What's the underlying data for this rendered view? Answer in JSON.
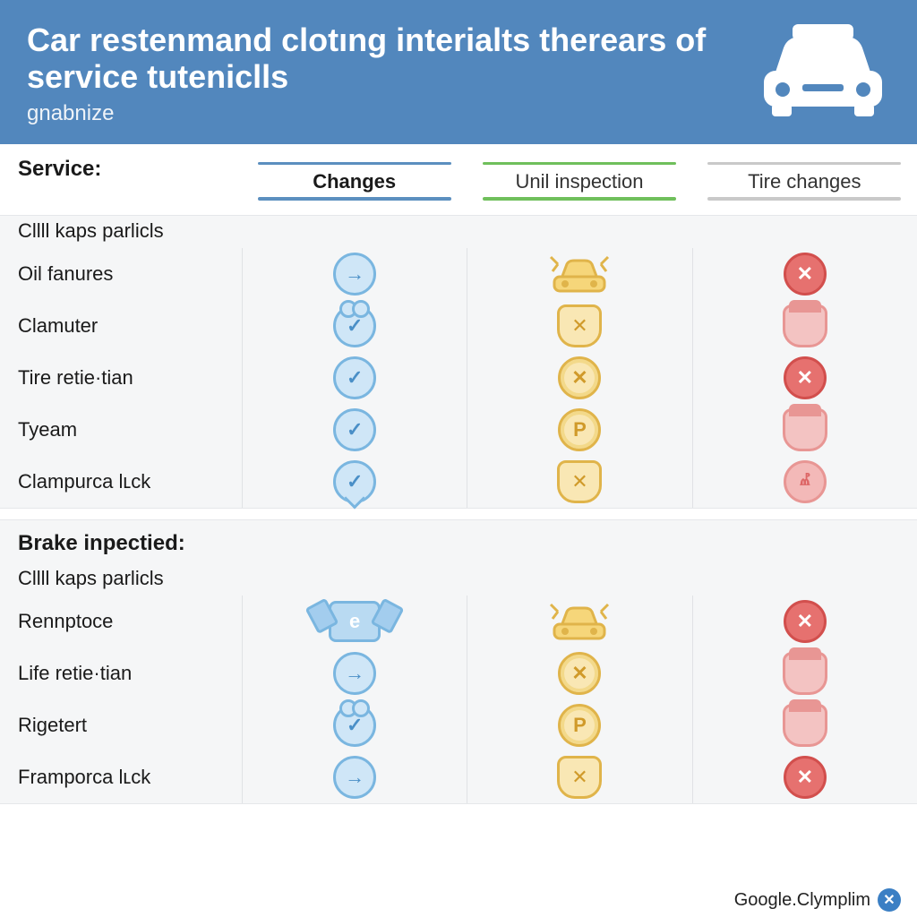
{
  "header": {
    "title": "Car restenmand clotıng interialts therears of service tuteniclls",
    "subtitle": "gnabnize",
    "bg_color": "#5287bd",
    "text_color": "#ffffff"
  },
  "columns": {
    "service_label": "Service:",
    "col1": {
      "label": "Changes",
      "topline_color": "#5b8fbf",
      "underline_color": "#5b8fbf",
      "header_weight": 700
    },
    "col2": {
      "label": "Unil inspection",
      "topline_color": "#6fbf5b",
      "underline_color": "#6fbf5b",
      "header_weight": 400
    },
    "col3": {
      "label": "Tire changes",
      "topline_color": "#c9c9c9",
      "underline_color": "#c9c9c9",
      "header_weight": 400
    }
  },
  "palette": {
    "blue_fill": "#cfe6f7",
    "blue_stroke": "#7ab6e0",
    "blue_glyph": "#4a8fc7",
    "gold_fill": "#f9e7b4",
    "gold_stroke": "#e0b44a",
    "gold_glyph": "#d09a2a",
    "red_fill": "#e6716f",
    "red_stroke": "#d24f4d",
    "red_glyph": "#ffffff",
    "redlight_fill": "#f3b9b8",
    "redlight_stroke": "#e89694",
    "section_bg": "#f5f6f7",
    "grid_line": "#e0e2e5",
    "page_bg": "#ffffff"
  },
  "sections": [
    {
      "subtitle": "Cllll kaps parlicls",
      "rows": [
        {
          "label": "Oil fanures",
          "cells": [
            {
              "shape": "blue-circle",
              "glyph": "→"
            },
            {
              "shape": "gold-car"
            },
            {
              "shape": "red-circle",
              "glyph": "✕"
            }
          ]
        },
        {
          "label": "Clamuter",
          "cells": [
            {
              "shape": "blue-ears",
              "glyph": "✓"
            },
            {
              "shape": "gold-arch",
              "glyph": "✕"
            },
            {
              "shape": "red-shield"
            }
          ]
        },
        {
          "label": "Tire retie·tian",
          "cells": [
            {
              "shape": "blue-circle",
              "glyph": "✓"
            },
            {
              "shape": "gold-circle",
              "glyph": "✕"
            },
            {
              "shape": "red-circle",
              "glyph": "✕"
            }
          ]
        },
        {
          "label": "Tyeam",
          "cells": [
            {
              "shape": "blue-circle",
              "glyph": "✓"
            },
            {
              "shape": "gold-circle",
              "glyph": "P"
            },
            {
              "shape": "red-shield"
            }
          ]
        },
        {
          "label": "Clampurca lʟck",
          "cells": [
            {
              "shape": "blue-tail",
              "glyph": "✓"
            },
            {
              "shape": "gold-arch",
              "glyph": "✕"
            },
            {
              "shape": "redlight-circle",
              "glyph": "ⰼ"
            }
          ]
        }
      ]
    },
    {
      "title": "Brake inpectied:",
      "subtitle": "Cllll kaps parlicls",
      "rows": [
        {
          "label": "Rennptoce",
          "cells": [
            {
              "shape": "blue-box",
              "glyph": "e"
            },
            {
              "shape": "gold-car"
            },
            {
              "shape": "red-circle",
              "glyph": "✕"
            }
          ]
        },
        {
          "label": "Life retie·tian",
          "cells": [
            {
              "shape": "blue-circle",
              "glyph": "→"
            },
            {
              "shape": "gold-circle",
              "glyph": "✕"
            },
            {
              "shape": "red-shield"
            }
          ]
        },
        {
          "label": "Rigetert",
          "cells": [
            {
              "shape": "blue-ears",
              "glyph": "✓"
            },
            {
              "shape": "gold-circle",
              "glyph": "P"
            },
            {
              "shape": "red-shield"
            }
          ]
        },
        {
          "label": "Framporca lʟck",
          "cells": [
            {
              "shape": "blue-circle",
              "glyph": "→"
            },
            {
              "shape": "gold-arch",
              "glyph": "✕"
            },
            {
              "shape": "red-circle",
              "glyph": "✕"
            }
          ]
        }
      ]
    }
  ],
  "footer": {
    "text": "Google.Clymplim",
    "close_glyph": "✕",
    "close_bg": "#3b7fc4"
  }
}
